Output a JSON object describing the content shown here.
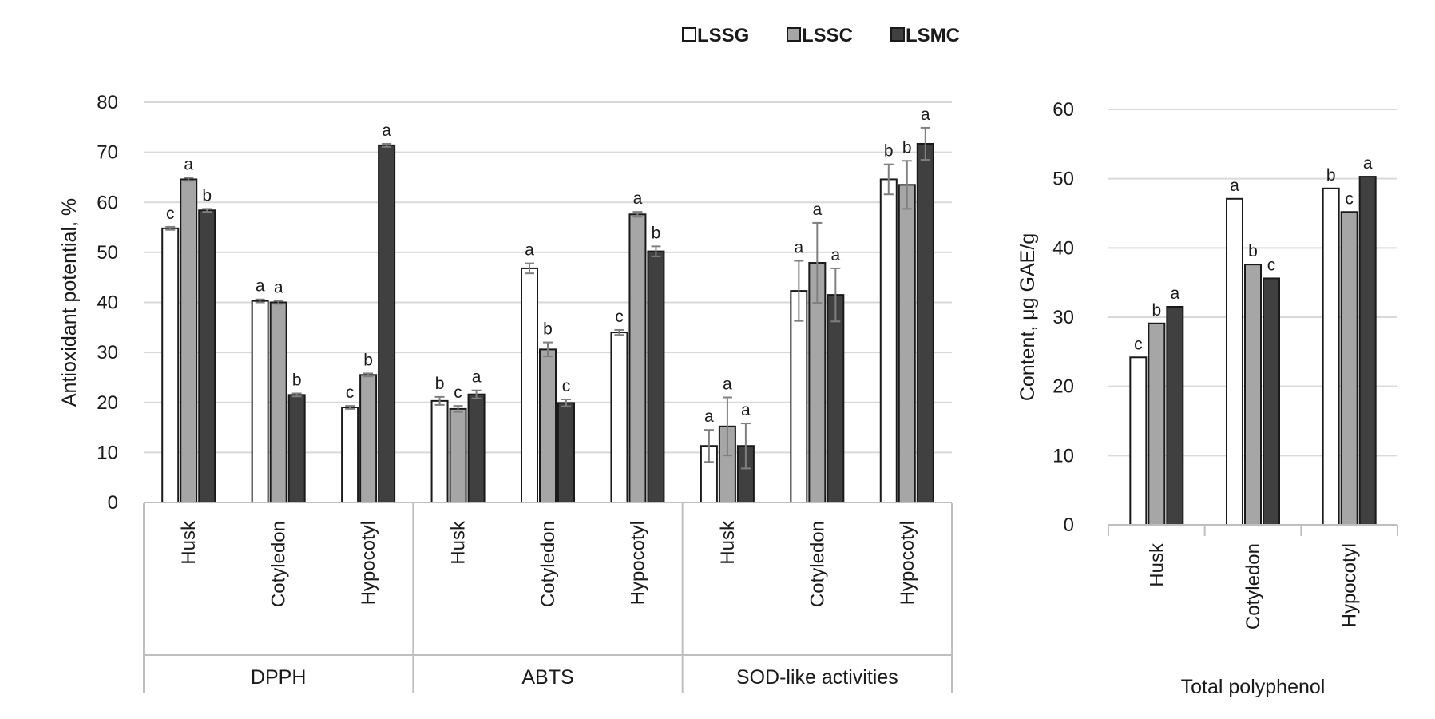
{
  "legend": [
    {
      "name": "LSSG",
      "color": "#ffffff"
    },
    {
      "name": "LSSC",
      "color": "#a6a6a6"
    },
    {
      "name": "LSMC",
      "color": "#404040"
    }
  ],
  "chart_data": [
    {
      "type": "bar",
      "ylabel": "Antioxidant potential, %",
      "ylim": [
        0,
        80
      ],
      "yticks": [
        0,
        10,
        20,
        30,
        40,
        50,
        60,
        70,
        80
      ],
      "grid": true,
      "legend_position": "top",
      "groups": [
        {
          "label": "DPPH",
          "categories": [
            "Husk",
            "Cotyledon",
            "Hypocotyl"
          ]
        },
        {
          "label": "ABTS",
          "categories": [
            "Husk",
            "Cotyledon",
            "Hypocotyl"
          ]
        },
        {
          "label": "SOD-like activities",
          "categories": [
            "Husk",
            "Cotyledon",
            "Hypocotyl"
          ]
        }
      ],
      "series": [
        {
          "name": "LSSG",
          "values": [
            54.8,
            40.3,
            19.0,
            20.3,
            46.8,
            34.0,
            11.3,
            42.3,
            64.6
          ],
          "errors": [
            0.3,
            0.3,
            0.3,
            0.8,
            1.0,
            0.5,
            3.2,
            6.0,
            3.0
          ],
          "labels": [
            "c",
            "a",
            "c",
            "b",
            "a",
            "c",
            "a",
            "a",
            "b"
          ]
        },
        {
          "name": "LSSC",
          "values": [
            64.6,
            40.0,
            25.5,
            18.7,
            30.6,
            57.6,
            15.2,
            47.9,
            63.5
          ],
          "errors": [
            0.3,
            0.3,
            0.3,
            0.6,
            1.4,
            0.5,
            5.8,
            8.0,
            4.8
          ],
          "labels": [
            "a",
            "a",
            "b",
            "c",
            "b",
            "a",
            "a",
            "a",
            "b"
          ]
        },
        {
          "name": "LSMC",
          "values": [
            58.4,
            21.5,
            71.4,
            21.6,
            19.9,
            50.2,
            11.3,
            41.5,
            71.7
          ],
          "errors": [
            0.3,
            0.3,
            0.3,
            0.8,
            0.7,
            1.0,
            4.5,
            5.3,
            3.2
          ],
          "labels": [
            "b",
            "b",
            "a",
            "a",
            "c",
            "b",
            "a",
            "a",
            "a"
          ]
        }
      ]
    },
    {
      "type": "bar",
      "ylabel": "Content, μg GAE/g",
      "xlabel": "Total polyphenol",
      "ylim": [
        0,
        60
      ],
      "yticks": [
        0,
        10,
        20,
        30,
        40,
        50,
        60
      ],
      "grid": true,
      "categories": [
        "Husk",
        "Cotyledon",
        "Hypocotyl"
      ],
      "series": [
        {
          "name": "LSSG",
          "values": [
            24.2,
            47.1,
            48.6
          ],
          "labels": [
            "c",
            "a",
            "b"
          ]
        },
        {
          "name": "LSSC",
          "values": [
            29.1,
            37.6,
            45.2
          ],
          "labels": [
            "b",
            "b",
            "c"
          ]
        },
        {
          "name": "LSMC",
          "values": [
            31.5,
            35.6,
            50.3
          ],
          "labels": [
            "a",
            "c",
            "a"
          ]
        }
      ]
    }
  ]
}
